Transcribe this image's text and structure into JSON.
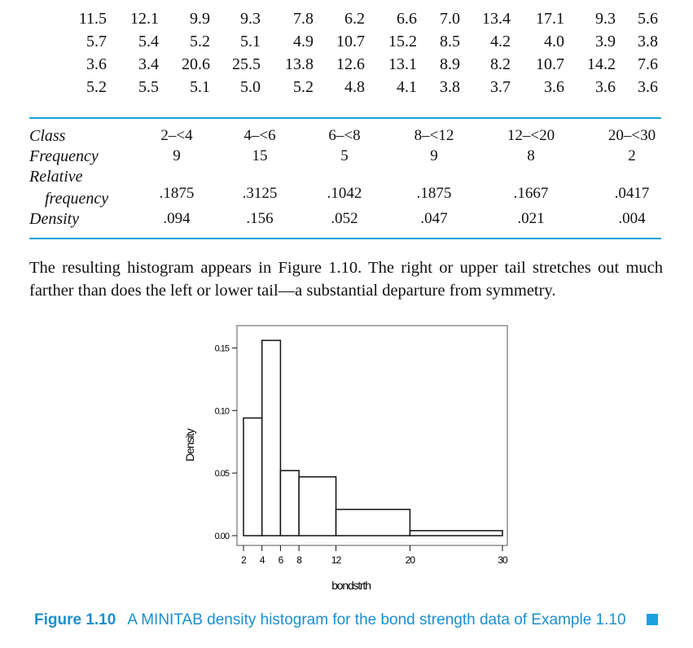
{
  "colors": {
    "accent": "#1BA1DB",
    "caption_text": "#1B8FD0",
    "bar_stroke": "#111111",
    "frame": "#555555"
  },
  "data_rows": [
    [
      "11.5",
      "12.1",
      "9.9",
      "9.3",
      "7.8",
      "6.2",
      "6.6",
      "7.0",
      "13.4",
      "17.1",
      "9.3",
      "5.6"
    ],
    [
      "5.7",
      "5.4",
      "5.2",
      "5.1",
      "4.9",
      "10.7",
      "15.2",
      "8.5",
      "4.2",
      "4.0",
      "3.9",
      "3.8"
    ],
    [
      "3.6",
      "3.4",
      "20.6",
      "25.5",
      "13.8",
      "12.6",
      "13.1",
      "8.9",
      "8.2",
      "10.7",
      "14.2",
      "7.6"
    ],
    [
      "5.2",
      "5.5",
      "5.1",
      "5.0",
      "5.2",
      "4.8",
      "4.1",
      "3.8",
      "3.7",
      "3.6",
      "3.6",
      "3.6"
    ]
  ],
  "table": {
    "labels": {
      "class": "Class",
      "frequency": "Frequency",
      "relative_1": "Relative",
      "relative_2": "frequency",
      "density": "Density"
    },
    "columns": [
      {
        "class": "2–<4",
        "frequency": "9",
        "relative": ".1875",
        "density": ".094"
      },
      {
        "class": "4–<6",
        "frequency": "15",
        "relative": ".3125",
        "density": ".156"
      },
      {
        "class": "6–<8",
        "frequency": "5",
        "relative": ".1042",
        "density": ".052"
      },
      {
        "class": "8–<12",
        "frequency": "9",
        "relative": ".1875",
        "density": ".047"
      },
      {
        "class": "12–<20",
        "frequency": "8",
        "relative": ".1667",
        "density": ".021"
      },
      {
        "class": "20–<30",
        "frequency": "2",
        "relative": ".0417",
        "density": ".004"
      }
    ]
  },
  "paragraph": "The resulting histogram appears in Figure 1.10. The right or upper tail stretches out much farther than does the left or lower tail—a substantial departure from symmetry.",
  "caption": {
    "number": "Figure 1.10",
    "text": "A MINITAB density histogram for the bond strength data of Example 1.10"
  },
  "chart_data": {
    "type": "bar",
    "subtype": "histogram",
    "bins": [
      {
        "from": 2,
        "to": 4,
        "density": 0.094
      },
      {
        "from": 4,
        "to": 6,
        "density": 0.156
      },
      {
        "from": 6,
        "to": 8,
        "density": 0.052
      },
      {
        "from": 8,
        "to": 12,
        "density": 0.047
      },
      {
        "from": 12,
        "to": 20,
        "density": 0.021
      },
      {
        "from": 20,
        "to": 30,
        "density": 0.004
      }
    ],
    "xlabel": "bondstrth",
    "ylabel": "Density",
    "xlim": [
      2,
      30
    ],
    "ylim": [
      0,
      0.16
    ],
    "xticks": [
      2,
      4,
      6,
      8,
      12,
      20,
      30
    ],
    "xtick_labels": [
      "2",
      "4",
      "6",
      "8",
      "12",
      "20",
      "30"
    ],
    "yticks": [
      0.0,
      0.05,
      0.1,
      0.15
    ],
    "ytick_labels": [
      "0.00",
      "0.05",
      "0.10",
      "0.15"
    ],
    "grid": false
  }
}
